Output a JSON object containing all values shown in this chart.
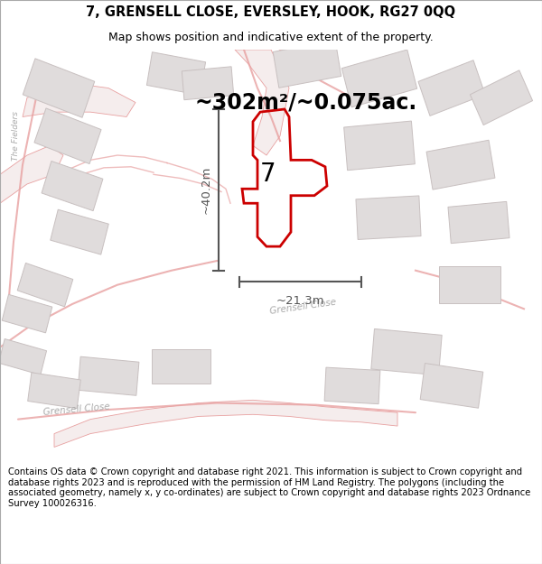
{
  "title": "7, GRENSELL CLOSE, EVERSLEY, HOOK, RG27 0QQ",
  "subtitle": "Map shows position and indicative extent of the property.",
  "area_label": "~302m²/~0.075ac.",
  "height_label": "~40.2m",
  "width_label": "~21.3m",
  "number_label": "7",
  "footer": "Contains OS data © Crown copyright and database right 2021. This information is subject to Crown copyright and database rights 2023 and is reproduced with the permission of HM Land Registry. The polygons (including the associated geometry, namely x, y co-ordinates) are subject to Crown copyright and database rights 2023 Ordnance Survey 100026316.",
  "bg_color": "#ffffff",
  "map_bg": "#f8f6f6",
  "road_color": "#e8a0a0",
  "road_fill": "#f5eded",
  "building_color": "#e0dcdc",
  "building_outline": "#c8c0c0",
  "property_color": "#cc0000",
  "dim_color": "#555555",
  "street_label_color": "#aaaaaa",
  "title_fontsize": 10.5,
  "subtitle_fontsize": 9,
  "area_fontsize": 17,
  "dim_fontsize": 9.5,
  "number_fontsize": 20,
  "footer_fontsize": 7.2
}
